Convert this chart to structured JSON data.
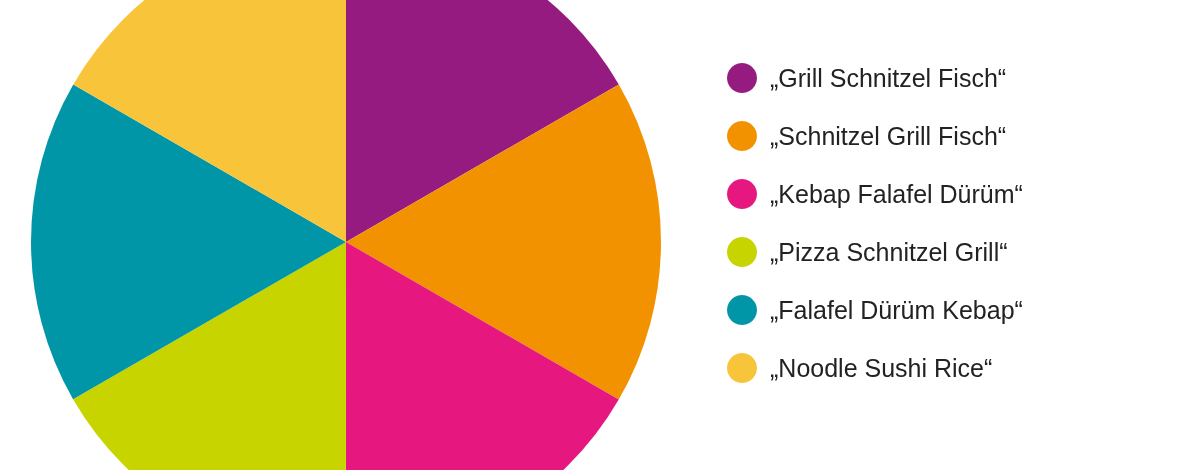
{
  "chart_data": {
    "type": "pie",
    "categories": [
      "„Grill Schnitzel Fisch“",
      "„Schnitzel Grill Fisch“",
      "„Kebap Falafel Dürüm“",
      "„Pizza Schnitzel Grill“",
      "„Falafel Dürüm Kebap“",
      "„Noodle Sushi Rice“"
    ],
    "values": [
      16.67,
      16.67,
      16.67,
      16.67,
      16.66,
      16.66
    ],
    "colors": [
      "#951b81",
      "#f39200",
      "#e6177f",
      "#c8d400",
      "#0096a8",
      "#f8c53a"
    ],
    "legend": "right"
  }
}
